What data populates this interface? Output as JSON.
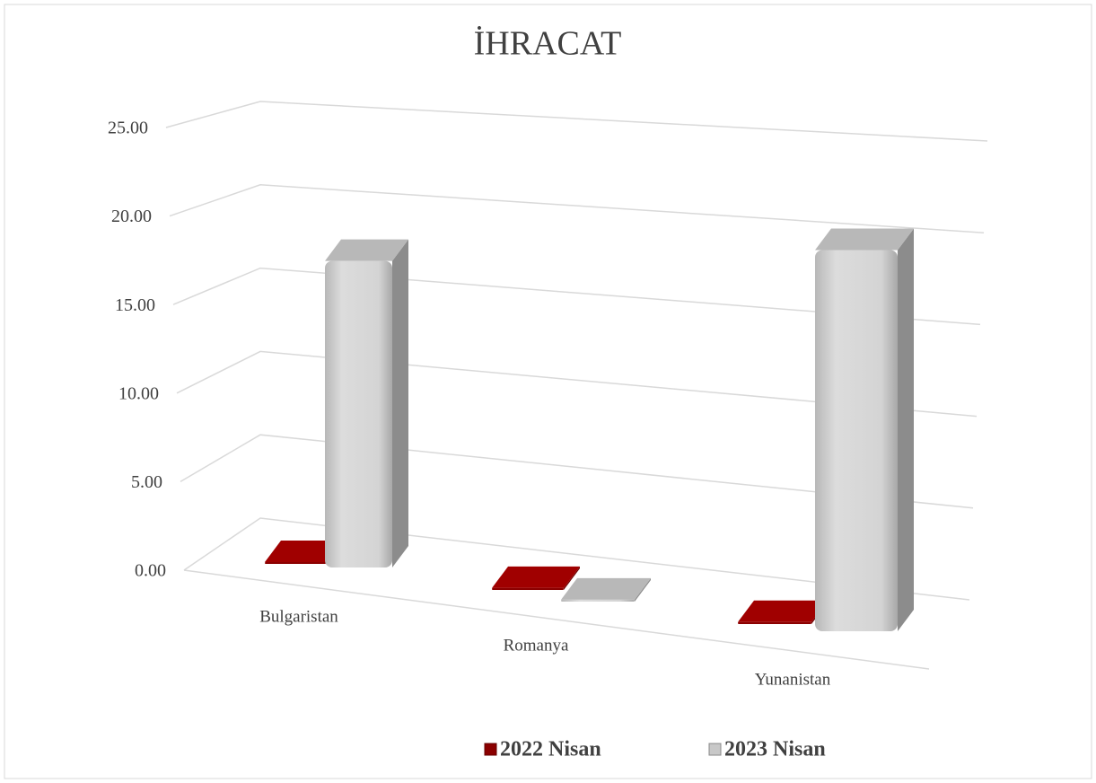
{
  "chart_data": {
    "type": "bar3d",
    "title": "İHRACAT",
    "categories": [
      "Bulgaristan",
      "Romanya",
      "Yunanistan"
    ],
    "series": [
      {
        "name": "2022 Nisan",
        "color": "#8b0000",
        "values": [
          0.1,
          0.1,
          0.1
        ]
      },
      {
        "name": "2023 Nisan",
        "color": "#c8c8c8",
        "values": [
          17.0,
          0.1,
          18.8
        ]
      }
    ],
    "ylim": [
      0,
      25
    ],
    "yticks": [
      {
        "value": 0,
        "label": "0.00"
      },
      {
        "value": 5,
        "label": "5.00"
      },
      {
        "value": 10,
        "label": "10.00"
      },
      {
        "value": 15,
        "label": "15.00"
      },
      {
        "value": 20,
        "label": "20.00"
      },
      {
        "value": 25,
        "label": "25.00"
      }
    ],
    "grid": true,
    "legend": "bottom"
  }
}
